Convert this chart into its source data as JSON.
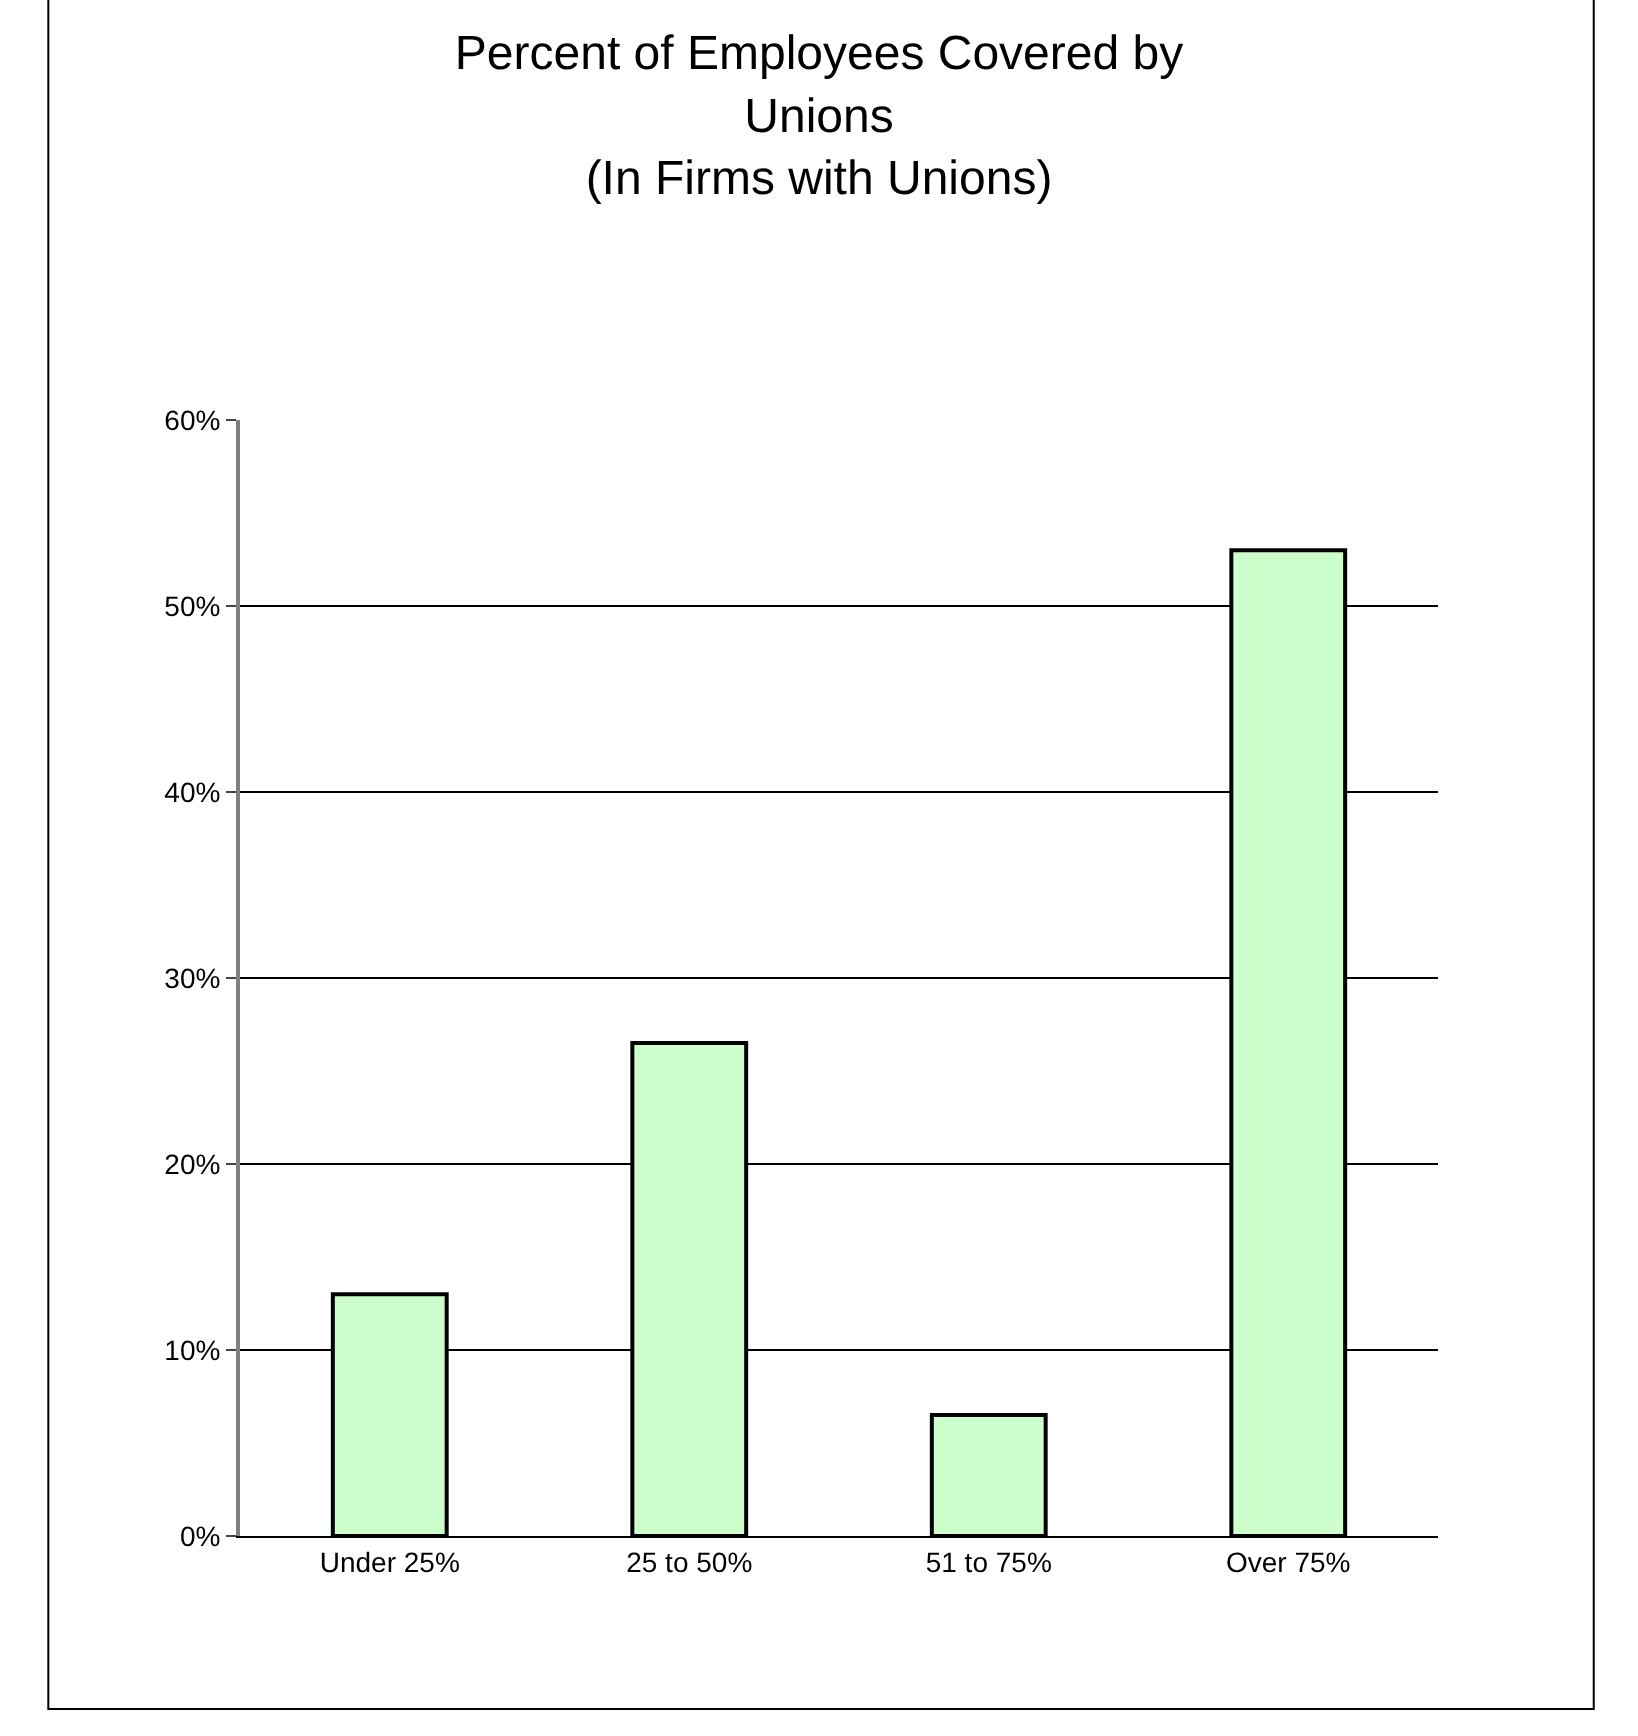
{
  "chart_data": {
    "type": "bar",
    "title": "Percent of Employees Covered by\nUnions\n(In Firms with Unions)",
    "categories": [
      "Under 25%",
      "25 to 50%",
      "51 to 75%",
      "Over 75%"
    ],
    "values": [
      13,
      26.5,
      6.5,
      53
    ],
    "color": "#ccffcc",
    "ylim": [
      0,
      60
    ],
    "yticks": [
      {
        "value": 0,
        "label": "0%"
      },
      {
        "value": 10,
        "label": "10%"
      },
      {
        "value": 20,
        "label": "20%"
      },
      {
        "value": 30,
        "label": "30%"
      },
      {
        "value": 40,
        "label": "40%"
      },
      {
        "value": 50,
        "label": "50%"
      },
      {
        "value": 60,
        "label": "60%"
      }
    ],
    "grid": "y"
  }
}
